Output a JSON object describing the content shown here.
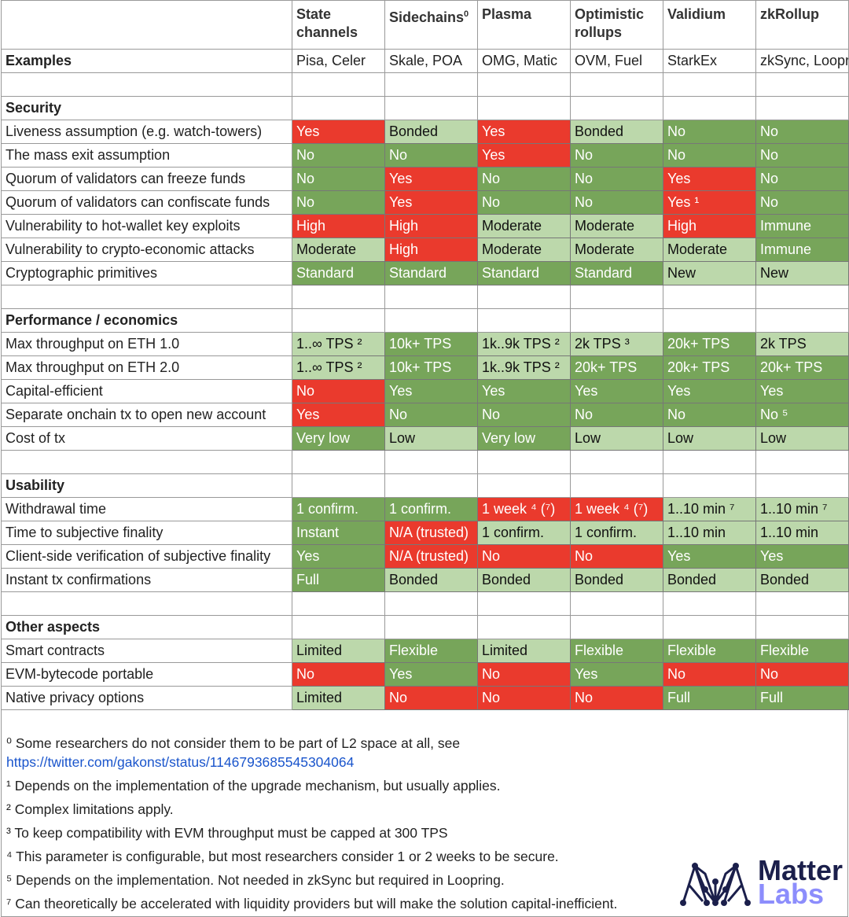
{
  "columns": [
    "State channels",
    "Sidechains",
    "Plasma",
    "Optimistic rollups",
    "Validium",
    "zkRollup"
  ],
  "column_superscripts": [
    "",
    "0",
    "",
    "",
    "",
    ""
  ],
  "examples_label": "Examples",
  "examples": [
    "Pisa, Celer",
    "Skale, POA",
    "OMG, Matic",
    "OVM, Fuel",
    "StarkEx",
    "zkSync, Loopring"
  ],
  "colors": {
    "red": "#ea3a2d",
    "dark_green": "#77a55a",
    "light_green": "#bcd8ab"
  },
  "sections": [
    {
      "title": "Security",
      "rows": [
        {
          "label": "Liveness assumption (e.g. watch-towers)",
          "cells": [
            [
              "Yes",
              "r"
            ],
            [
              "Bonded",
              "l"
            ],
            [
              "Yes",
              "r"
            ],
            [
              "Bonded",
              "l"
            ],
            [
              "No",
              "g"
            ],
            [
              "No",
              "g"
            ]
          ]
        },
        {
          "label": "The mass exit assumption",
          "cells": [
            [
              "No",
              "g"
            ],
            [
              "No",
              "g"
            ],
            [
              "Yes",
              "r"
            ],
            [
              "No",
              "g"
            ],
            [
              "No",
              "g"
            ],
            [
              "No",
              "g"
            ]
          ]
        },
        {
          "label": "Quorum of validators can freeze funds",
          "cells": [
            [
              "No",
              "g"
            ],
            [
              "Yes",
              "r"
            ],
            [
              "No",
              "g"
            ],
            [
              "No",
              "g"
            ],
            [
              "Yes",
              "r"
            ],
            [
              "No",
              "g"
            ]
          ]
        },
        {
          "label": "Quorum of validators can confiscate funds",
          "cells": [
            [
              "No",
              "g"
            ],
            [
              "Yes",
              "r"
            ],
            [
              "No",
              "g"
            ],
            [
              "No",
              "g"
            ],
            [
              "Yes ¹",
              "r"
            ],
            [
              "No",
              "g"
            ]
          ]
        },
        {
          "label": "Vulnerability to hot-wallet key exploits",
          "cells": [
            [
              "High",
              "r"
            ],
            [
              "High",
              "r"
            ],
            [
              "Moderate",
              "l"
            ],
            [
              "Moderate",
              "l"
            ],
            [
              "High",
              "r"
            ],
            [
              "Immune",
              "g"
            ]
          ]
        },
        {
          "label": "Vulnerability to crypto-economic attacks",
          "cells": [
            [
              "Moderate",
              "l"
            ],
            [
              "High",
              "r"
            ],
            [
              "Moderate",
              "l"
            ],
            [
              "Moderate",
              "l"
            ],
            [
              "Moderate",
              "l"
            ],
            [
              "Immune",
              "g"
            ]
          ]
        },
        {
          "label": "Cryptographic primitives",
          "cells": [
            [
              "Standard",
              "g"
            ],
            [
              "Standard",
              "g"
            ],
            [
              "Standard",
              "g"
            ],
            [
              "Standard",
              "g"
            ],
            [
              "New",
              "l"
            ],
            [
              "New",
              "l"
            ]
          ]
        }
      ]
    },
    {
      "title": "Performance / economics",
      "rows": [
        {
          "label": "Max throughput on ETH 1.0",
          "cells": [
            [
              "1..∞ TPS ²",
              "l"
            ],
            [
              "10k+ TPS",
              "g"
            ],
            [
              "1k..9k TPS ²",
              "l"
            ],
            [
              "2k TPS ³",
              "l"
            ],
            [
              "20k+ TPS",
              "g"
            ],
            [
              "2k TPS",
              "l"
            ]
          ]
        },
        {
          "label": "Max throughput on ETH 2.0",
          "cells": [
            [
              "1..∞ TPS ²",
              "l"
            ],
            [
              "10k+ TPS",
              "g"
            ],
            [
              "1k..9k TPS ²",
              "l"
            ],
            [
              "20k+ TPS",
              "g"
            ],
            [
              "20k+ TPS",
              "g"
            ],
            [
              "20k+ TPS",
              "g"
            ]
          ]
        },
        {
          "label": "Capital-efficient",
          "cells": [
            [
              "No",
              "r"
            ],
            [
              "Yes",
              "g"
            ],
            [
              "Yes",
              "g"
            ],
            [
              "Yes",
              "g"
            ],
            [
              "Yes",
              "g"
            ],
            [
              "Yes",
              "g"
            ]
          ]
        },
        {
          "label": "Separate onchain tx to open new account",
          "cells": [
            [
              "Yes",
              "r"
            ],
            [
              "No",
              "g"
            ],
            [
              "No",
              "g"
            ],
            [
              "No",
              "g"
            ],
            [
              "No",
              "g"
            ],
            [
              "No ⁵",
              "g"
            ]
          ]
        },
        {
          "label": "Cost of tx",
          "cells": [
            [
              "Very low",
              "g"
            ],
            [
              "Low",
              "l"
            ],
            [
              "Very low",
              "g"
            ],
            [
              "Low",
              "l"
            ],
            [
              "Low",
              "l"
            ],
            [
              "Low",
              "l"
            ]
          ]
        }
      ]
    },
    {
      "title": "Usability",
      "rows": [
        {
          "label": "Withdrawal time",
          "cells": [
            [
              "1 confirm.",
              "g"
            ],
            [
              "1 confirm.",
              "g"
            ],
            [
              "1 week ⁴ (⁷)",
              "r"
            ],
            [
              "1 week ⁴ (⁷)",
              "r"
            ],
            [
              "1..10 min ⁷",
              "l"
            ],
            [
              "1..10 min ⁷",
              "l"
            ]
          ]
        },
        {
          "label": "Time to subjective finality",
          "cells": [
            [
              "Instant",
              "g"
            ],
            [
              "N/A (trusted)",
              "r"
            ],
            [
              "1 confirm.",
              "l"
            ],
            [
              "1 confirm.",
              "l"
            ],
            [
              "1..10 min",
              "l"
            ],
            [
              "1..10 min",
              "l"
            ]
          ]
        },
        {
          "label": "Client-side verification of subjective finality",
          "cells": [
            [
              "Yes",
              "g"
            ],
            [
              "N/A (trusted)",
              "r"
            ],
            [
              "No",
              "r"
            ],
            [
              "No",
              "r"
            ],
            [
              "Yes",
              "g"
            ],
            [
              "Yes",
              "g"
            ]
          ]
        },
        {
          "label": "Instant tx confirmations",
          "cells": [
            [
              "Full",
              "g"
            ],
            [
              "Bonded",
              "l"
            ],
            [
              "Bonded",
              "l"
            ],
            [
              "Bonded",
              "l"
            ],
            [
              "Bonded",
              "l"
            ],
            [
              "Bonded",
              "l"
            ]
          ]
        }
      ]
    },
    {
      "title": "Other aspects",
      "rows": [
        {
          "label": "Smart contracts",
          "cells": [
            [
              "Limited",
              "l"
            ],
            [
              "Flexible",
              "g"
            ],
            [
              "Limited",
              "l"
            ],
            [
              "Flexible",
              "g"
            ],
            [
              "Flexible",
              "g"
            ],
            [
              "Flexible",
              "g"
            ]
          ]
        },
        {
          "label": "EVM-bytecode portable",
          "cells": [
            [
              "No",
              "r"
            ],
            [
              "Yes",
              "g"
            ],
            [
              "No",
              "r"
            ],
            [
              "Yes",
              "g"
            ],
            [
              "No",
              "r"
            ],
            [
              "No",
              "r"
            ]
          ]
        },
        {
          "label": "Native privacy options",
          "cells": [
            [
              "Limited",
              "l"
            ],
            [
              "No",
              "r"
            ],
            [
              "No",
              "r"
            ],
            [
              "No",
              "r"
            ],
            [
              "Full",
              "g"
            ],
            [
              "Full",
              "g"
            ]
          ]
        }
      ]
    }
  ],
  "footnotes": {
    "n0": "⁰ Some researchers do not consider them to be part of L2 space at all, see",
    "n0_link": "https://twitter.com/gakonst/status/1146793685545304064",
    "n1": "¹ Depends on the implementation of the upgrade mechanism, but usually applies.",
    "n2": "² Complex limitations apply.",
    "n3": "³ To keep compatibility with EVM throughput must be capped at 300 TPS",
    "n4": "⁴ This parameter is configurable, but most researchers consider 1 or 2 weeks to be secure.",
    "n5": "⁵ Depends on the implementation. Not needed in zkSync but required in Loopring.",
    "n7": "⁷ Can theoretically be accelerated with liquidity providers but will make the solution capital-inefficient."
  },
  "logo": {
    "line1": "Matter",
    "line2": "Labs",
    "color1": "#1b1f4b",
    "color2": "#8c8dfc"
  }
}
